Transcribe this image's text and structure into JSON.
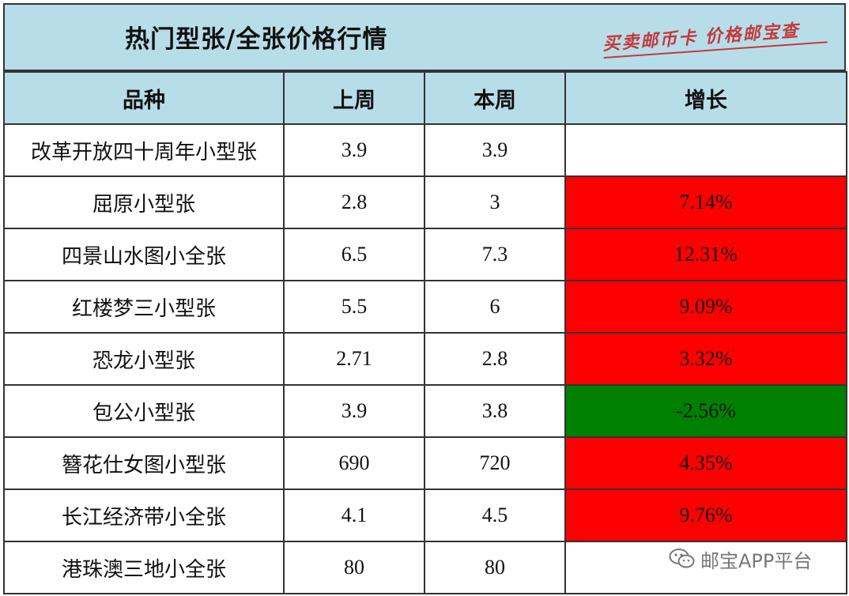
{
  "header": {
    "title": "热门型张/全张价格行情",
    "stamp_text": "买卖邮币卡 价格邮宝查"
  },
  "table": {
    "columns": [
      "品种",
      "上周",
      "本周",
      "增长"
    ],
    "rows": [
      {
        "name": "改革开放四十周年小型张",
        "last_week": "3.9",
        "this_week": "3.9",
        "growth": "",
        "trend": "flat"
      },
      {
        "name": "屈原小型张",
        "last_week": "2.8",
        "this_week": "3",
        "growth": "7.14%",
        "trend": "up"
      },
      {
        "name": "四景山水图小全张",
        "last_week": "6.5",
        "this_week": "7.3",
        "growth": "12.31%",
        "trend": "up"
      },
      {
        "name": "红楼梦三小型张",
        "last_week": "5.5",
        "this_week": "6",
        "growth": "9.09%",
        "trend": "up"
      },
      {
        "name": "恐龙小型张",
        "last_week": "2.71",
        "this_week": "2.8",
        "growth": "3.32%",
        "trend": "up"
      },
      {
        "name": "包公小型张",
        "last_week": "3.9",
        "this_week": "3.8",
        "growth": "-2.56%",
        "trend": "down"
      },
      {
        "name": "簪花仕女图小型张",
        "last_week": "690",
        "this_week": "720",
        "growth": "4.35%",
        "trend": "up"
      },
      {
        "name": "长江经济带小全张",
        "last_week": "4.1",
        "this_week": "4.5",
        "growth": "9.76%",
        "trend": "up"
      },
      {
        "name": "港珠澳三地小全张",
        "last_week": "80",
        "this_week": "80",
        "growth": "",
        "trend": "flat"
      }
    ]
  },
  "colors": {
    "header_bg": "#b7dde8",
    "up": "#ff0000",
    "down": "#008000",
    "stamp": "#c23a3a"
  },
  "watermark": {
    "text": "邮宝APP平台",
    "icon": "wechat-icon"
  }
}
